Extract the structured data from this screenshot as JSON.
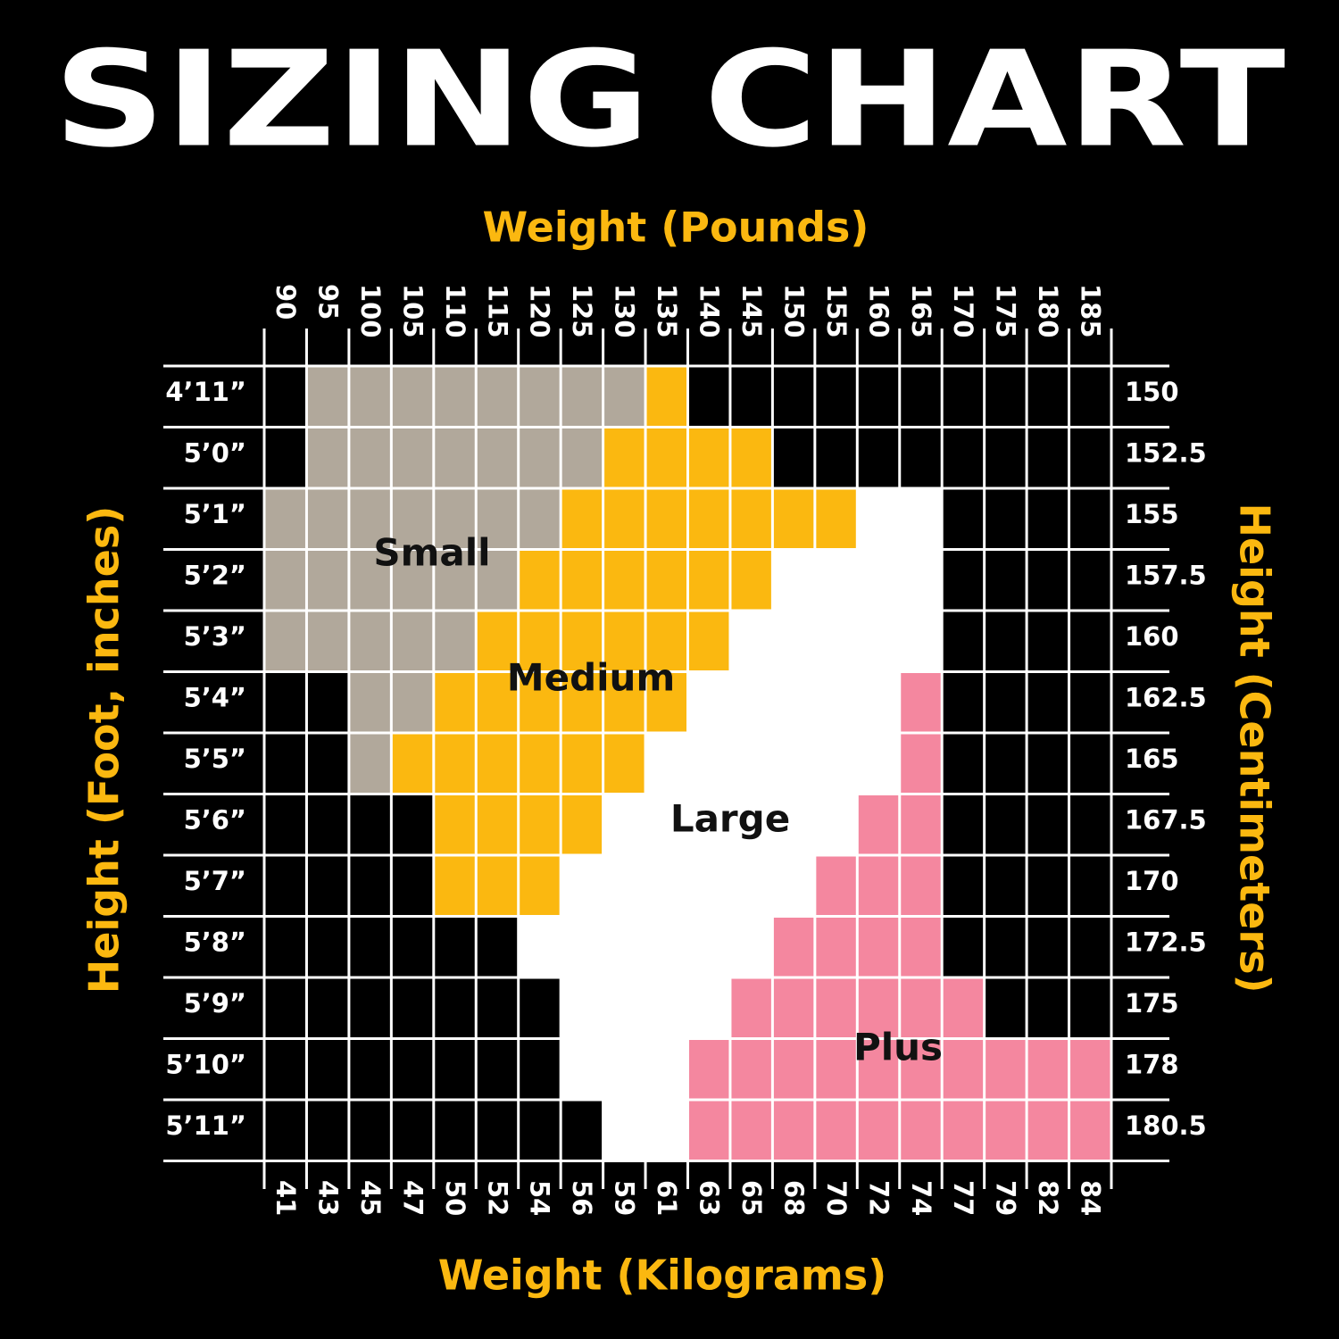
{
  "title": "SIZING CHART",
  "top_axis_label": "Weight (Pounds)",
  "bottom_axis_label": "Weight (Kilograms)",
  "left_axis_label": "Height (Foot, inches)",
  "right_axis_label": "Height (Centimeters)",
  "pounds": [
    90,
    95,
    100,
    105,
    110,
    115,
    120,
    125,
    130,
    135,
    140,
    145,
    150,
    155,
    160,
    165,
    170,
    175,
    180,
    185
  ],
  "kilograms": [
    41,
    43,
    45,
    47,
    50,
    52,
    54,
    56,
    59,
    61,
    63,
    65,
    68,
    70,
    72,
    74,
    77,
    79,
    82,
    84
  ],
  "heights_ft": [
    "4’11”",
    "5’0”",
    "5’1”",
    "5’2”",
    "5’3”",
    "5’4”",
    "5’5”",
    "5’6”",
    "5’7”",
    "5’8”",
    "5’9”",
    "5’10”",
    "5’11”"
  ],
  "heights_cm": [
    150,
    152.5,
    155,
    157.5,
    160,
    162.5,
    165,
    167.5,
    170,
    172.5,
    175,
    178,
    180.5
  ],
  "sizes": [
    {
      "name": "Small",
      "color": "#b1a89b"
    },
    {
      "name": "Medium",
      "color": "#fbb810"
    },
    {
      "name": "Large",
      "color": "#ffffff"
    },
    {
      "name": "Plus",
      "color": "#f4879f"
    }
  ],
  "cells": [
    [
      null,
      0,
      0,
      0,
      0,
      0,
      0,
      0,
      0,
      1,
      null,
      null,
      null,
      null,
      null,
      null,
      null,
      null,
      null,
      null
    ],
    [
      null,
      0,
      0,
      0,
      0,
      0,
      0,
      0,
      1,
      1,
      1,
      1,
      null,
      null,
      null,
      null,
      null,
      null,
      null,
      null
    ],
    [
      0,
      0,
      0,
      0,
      0,
      0,
      0,
      1,
      1,
      1,
      1,
      1,
      1,
      1,
      2,
      2,
      null,
      null,
      null,
      null
    ],
    [
      0,
      0,
      0,
      0,
      0,
      0,
      1,
      1,
      1,
      1,
      1,
      1,
      2,
      2,
      2,
      2,
      null,
      null,
      null,
      null
    ],
    [
      0,
      0,
      0,
      0,
      0,
      1,
      1,
      1,
      1,
      1,
      1,
      2,
      2,
      2,
      2,
      2,
      null,
      null,
      null,
      null
    ],
    [
      null,
      null,
      0,
      0,
      1,
      1,
      1,
      1,
      1,
      1,
      2,
      2,
      2,
      2,
      2,
      3,
      null,
      null,
      null,
      null
    ],
    [
      null,
      null,
      0,
      1,
      1,
      1,
      1,
      1,
      1,
      2,
      2,
      2,
      2,
      2,
      2,
      3,
      null,
      null,
      null,
      null
    ],
    [
      null,
      null,
      null,
      null,
      1,
      1,
      1,
      1,
      2,
      2,
      2,
      2,
      2,
      2,
      3,
      3,
      null,
      null,
      null,
      null
    ],
    [
      null,
      null,
      null,
      null,
      1,
      1,
      1,
      2,
      2,
      2,
      2,
      2,
      2,
      3,
      3,
      3,
      null,
      null,
      null,
      null
    ],
    [
      null,
      null,
      null,
      null,
      null,
      null,
      2,
      2,
      2,
      2,
      2,
      2,
      3,
      3,
      3,
      3,
      null,
      null,
      null,
      null
    ],
    [
      null,
      null,
      null,
      null,
      null,
      null,
      null,
      2,
      2,
      2,
      2,
      3,
      3,
      3,
      3,
      3,
      3,
      null,
      null,
      null
    ],
    [
      null,
      null,
      null,
      null,
      null,
      null,
      null,
      2,
      2,
      2,
      3,
      3,
      3,
      3,
      3,
      3,
      3,
      3,
      3,
      3
    ],
    [
      null,
      null,
      null,
      null,
      null,
      null,
      null,
      null,
      2,
      2,
      3,
      3,
      3,
      3,
      3,
      3,
      3,
      3,
      3,
      3
    ]
  ]
}
